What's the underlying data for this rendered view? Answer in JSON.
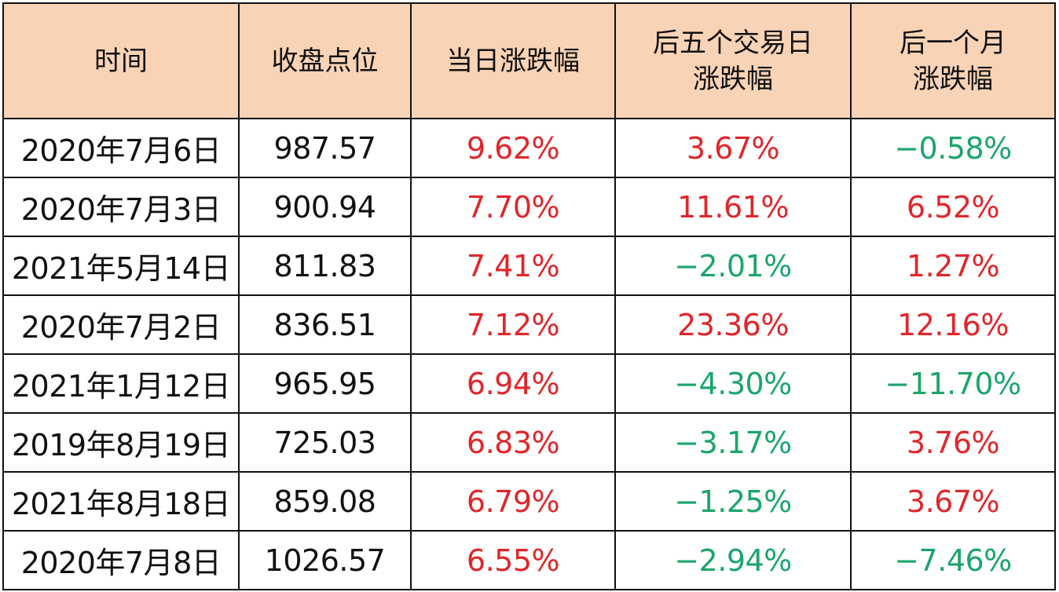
{
  "colors": {
    "header_bg": "#f9d3b5",
    "up": "#e0262a",
    "down": "#1ba56b"
  },
  "table": {
    "headers": [
      "时间",
      "收盘点位",
      "当日涨跌幅",
      "后五个交易日\n涨跌幅",
      "后一个月\n涨跌幅"
    ],
    "rows": [
      [
        "2020年7月6日",
        "987.57",
        "9.62%",
        "3.67%",
        "−0.58%"
      ],
      [
        "2020年7月3日",
        "900.94",
        "7.70%",
        "11.61%",
        "6.52%"
      ],
      [
        "2021年5月14日",
        "811.83",
        "7.41%",
        "−2.01%",
        "1.27%"
      ],
      [
        "2020年7月2日",
        "836.51",
        "7.12%",
        "23.36%",
        "12.16%"
      ],
      [
        "2021年1月12日",
        "965.95",
        "6.94%",
        "−4.30%",
        "−11.70%"
      ],
      [
        "2019年8月19日",
        "725.03",
        "6.83%",
        "−3.17%",
        "3.76%"
      ],
      [
        "2021年8月18日",
        "859.08",
        "6.79%",
        "−1.25%",
        "3.67%"
      ],
      [
        "2020年7月8日",
        "1026.57",
        "6.55%",
        "−2.94%",
        "−7.46%"
      ]
    ]
  }
}
